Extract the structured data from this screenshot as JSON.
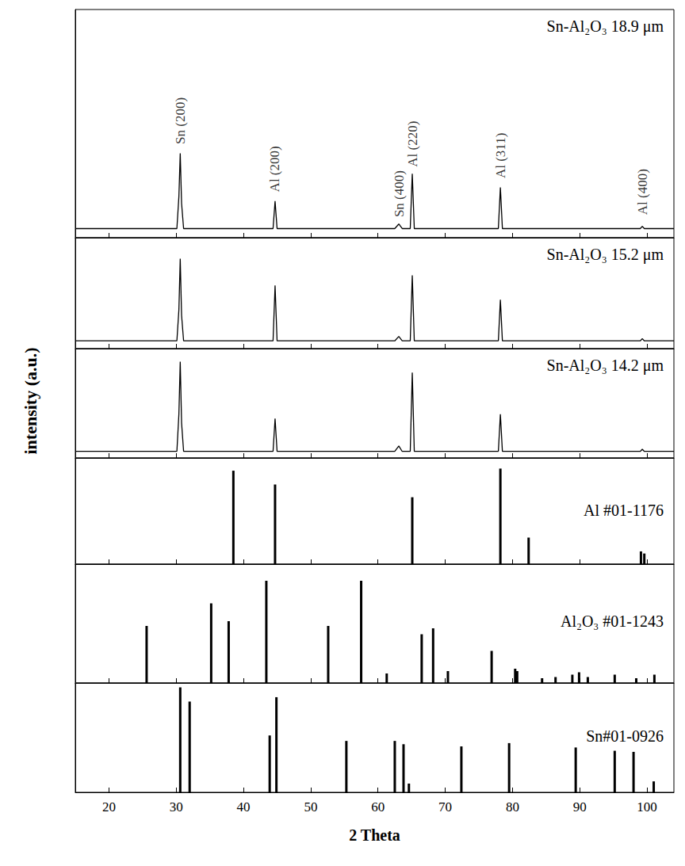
{
  "chart_data": {
    "type": "line",
    "xlabel": "2 Theta",
    "ylabel": "intensity (a.u.)",
    "xlim": [
      15,
      104
    ],
    "xticks": [
      20,
      30,
      40,
      50,
      60,
      70,
      80,
      90,
      100
    ],
    "tick_labels": "x",
    "grid": false,
    "panels": [
      {
        "type": "line",
        "title": "Sn-Al₂O₃ 18.9 μm",
        "color": "#000000",
        "ylim": [
          0,
          100
        ],
        "x": [
          15,
          30.1,
          30.4,
          30.6,
          30.8,
          31.1,
          44.4,
          44.7,
          45.0,
          62.5,
          63.1,
          63.6,
          64.8,
          65.1,
          65.4,
          77.9,
          78.2,
          78.5,
          99.0,
          99.3,
          99.6,
          104
        ],
        "values": [
          4,
          4,
          18,
          37,
          15,
          4,
          4,
          16,
          4,
          4,
          6,
          4,
          4,
          28,
          4,
          4,
          22,
          4,
          4,
          5,
          4,
          4
        ],
        "annotations": [
          {
            "text": "Sn (200)",
            "x": 30.6,
            "y": 41
          },
          {
            "text": "Al (200)",
            "x": 44.7,
            "y": 20
          },
          {
            "text": "Sn (400)",
            "x": 63.1,
            "y": 9
          },
          {
            "text": "Al (220)",
            "x": 65.1,
            "y": 31
          },
          {
            "text": "Al (311)",
            "x": 78.2,
            "y": 26
          },
          {
            "text": "Al (400)",
            "x": 99.3,
            "y": 10
          }
        ]
      },
      {
        "type": "line",
        "title": "Sn-Al₂O₃ 15.2 μm",
        "color": "#000000",
        "ylim": [
          0,
          100
        ],
        "x": [
          15,
          30.1,
          30.4,
          30.6,
          30.8,
          31.1,
          44.4,
          44.7,
          45.0,
          62.5,
          63.1,
          63.6,
          64.8,
          65.1,
          65.4,
          77.9,
          78.2,
          78.5,
          99.0,
          99.3,
          99.6,
          104
        ],
        "values": [
          7,
          7,
          35,
          81,
          30,
          7,
          7,
          57,
          7,
          7,
          11,
          7,
          7,
          66,
          7,
          7,
          44,
          7,
          7,
          9,
          7,
          7
        ]
      },
      {
        "type": "line",
        "title": "Sn-Al₂O₃ 14.2 μm",
        "color": "#000000",
        "ylim": [
          0,
          100
        ],
        "x": [
          15,
          30.1,
          30.4,
          30.6,
          30.8,
          31.1,
          44.4,
          44.7,
          45.0,
          62.5,
          63.1,
          63.6,
          64.8,
          65.1,
          65.4,
          77.9,
          78.2,
          78.5,
          99.0,
          99.3,
          99.6,
          104
        ],
        "values": [
          6,
          6,
          40,
          88,
          32,
          6,
          6,
          36,
          6,
          6,
          11,
          6,
          6,
          78,
          6,
          6,
          40,
          6,
          6,
          8,
          6,
          6
        ]
      },
      {
        "type": "bar",
        "title": "Al #01-1176",
        "color": "#000000",
        "ylim": [
          0,
          100
        ],
        "x": [
          38.5,
          44.7,
          65.1,
          78.2,
          82.4,
          99.1,
          99.6
        ],
        "values": [
          88,
          75,
          63,
          90,
          25,
          12,
          10
        ]
      },
      {
        "type": "bar",
        "title": "Al₂O₃ #01-1243",
        "color": "#000000",
        "ylim": [
          0,
          100
        ],
        "x": [
          25.6,
          35.2,
          37.8,
          43.4,
          52.6,
          57.5,
          61.3,
          66.5,
          68.2,
          70.4,
          76.9,
          80.4,
          80.7,
          84.4,
          86.4,
          88.9,
          89.9,
          91.2,
          95.2,
          98.4,
          101.1
        ],
        "values": [
          48,
          67,
          52,
          86,
          48,
          86,
          8,
          41,
          46,
          10,
          27,
          12,
          10,
          4,
          5,
          7,
          9,
          5,
          7,
          4,
          7
        ]
      },
      {
        "type": "bar",
        "title": "Sn#01-0926",
        "color": "#000000",
        "ylim": [
          0,
          100
        ],
        "x": [
          30.6,
          32.0,
          43.9,
          44.9,
          55.3,
          62.5,
          63.8,
          64.6,
          72.4,
          79.5,
          89.4,
          95.2,
          98.0,
          101.0
        ],
        "values": [
          96,
          83,
          52,
          87,
          47,
          47,
          44,
          8,
          42,
          45,
          41,
          38,
          37,
          10
        ]
      }
    ]
  }
}
